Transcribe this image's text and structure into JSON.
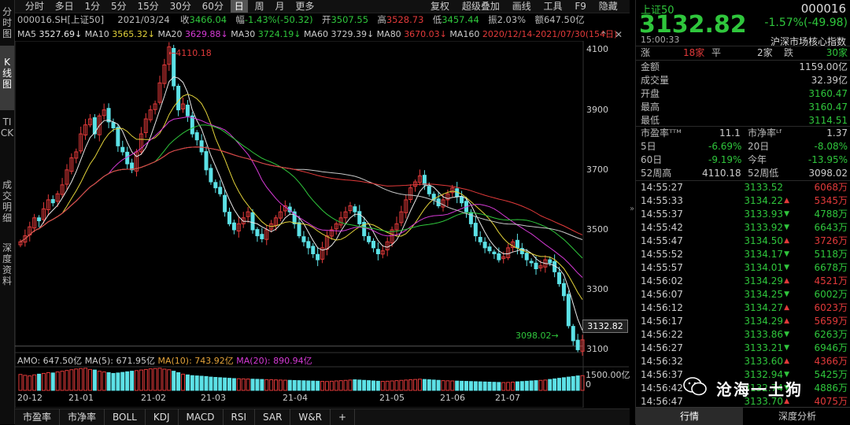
{
  "left_tabs": [
    "分时图",
    "K线图",
    "TICK",
    "成交明细",
    "深度资料"
  ],
  "toolbar": {
    "periods": [
      "分时",
      "多日",
      "1分",
      "5分",
      "15分",
      "30分",
      "60分",
      "日",
      "周",
      "月",
      "更多"
    ],
    "right_items": [
      "复权",
      "超级叠加",
      "画线",
      "工具",
      "F9",
      "隐藏"
    ]
  },
  "info": {
    "code": "000016.SH[上证50]",
    "date": "2021/03/24",
    "close_label": "收",
    "close": "3466.04",
    "change_label": "幅",
    "change": "-1.43%(-50.32)",
    "open_label": "开",
    "open": "3507.55",
    "high_label": "高",
    "high": "3528.73",
    "low_label": "低",
    "low": "3457.44",
    "amp_label": "振",
    "amp": "2.03%",
    "amount_label": "额",
    "amount": "647.50亿"
  },
  "ma": [
    {
      "label": "MA5",
      "value": "3527.69↓",
      "color": "#e8e8e8"
    },
    {
      "label": "MA10",
      "value": "3565.32↓",
      "color": "#e3d33a"
    },
    {
      "label": "MA20",
      "value": "3629.88↓",
      "color": "#d63ad6"
    },
    {
      "label": "MA30",
      "value": "3724.19↓",
      "color": "#2fc63c"
    },
    {
      "label": "MA60",
      "value": "3729.39↓",
      "color": "#c8c8c8"
    },
    {
      "label": "MA80",
      "value": "3670.03↓",
      "color": "#e23a3a"
    },
    {
      "label": "MA160",
      "value": "",
      "color": "#e3d33a"
    }
  ],
  "range_text": "2020/12/14-2021/07/30(154日)",
  "price_axis": [
    "4100",
    "3900",
    "3700",
    "3500",
    "3300",
    "3100"
  ],
  "last_price_tag": "3132.82",
  "high_mark": "4110.18",
  "low_mark": "3098.02",
  "amo": {
    "label": "AMO: 647.50亿",
    "ma5": "MA(5): 671.95亿",
    "ma10": "MA(10): 743.92亿",
    "ma20": "MA(20): 890.94亿",
    "axis_top": "1500.00亿",
    "axis_bottom": "0"
  },
  "date_axis": [
    "20-12",
    "21-01",
    "21-02",
    "21-03",
    "21-04",
    "21-05",
    "21-06",
    "21-07"
  ],
  "bottom_tabs": [
    "市盈率",
    "市净率",
    "BOLL",
    "KDJ",
    "MACD",
    "RSI",
    "SAR",
    "W&R"
  ],
  "bottom_plus": "+",
  "chart_data": {
    "type": "candlestick",
    "range": "2020/12/14-2021/07/30",
    "ylim": [
      3080,
      4130
    ],
    "series_note": "daily index candles, approximate",
    "closes": [
      3460,
      3480,
      3510,
      3540,
      3530,
      3570,
      3600,
      3590,
      3620,
      3650,
      3700,
      3740,
      3760,
      3820,
      3850,
      3870,
      3820,
      3880,
      3900,
      3860,
      3840,
      3780,
      3760,
      3720,
      3700,
      3760,
      3820,
      3870,
      3900,
      3920,
      3990,
      4050,
      4110,
      3980,
      3900,
      3920,
      3880,
      3820,
      3800,
      3760,
      3700,
      3660,
      3640,
      3620,
      3560,
      3520,
      3500,
      3520,
      3540,
      3560,
      3500,
      3480,
      3470,
      3500,
      3520,
      3540,
      3560,
      3580,
      3560,
      3520,
      3480,
      3460,
      3440,
      3420,
      3400,
      3440,
      3480,
      3500,
      3520,
      3540,
      3560,
      3580,
      3560,
      3520,
      3480,
      3460,
      3440,
      3420,
      3430,
      3460,
      3500,
      3520,
      3560,
      3600,
      3640,
      3660,
      3680,
      3650,
      3620,
      3600,
      3580,
      3600,
      3620,
      3640,
      3610,
      3590,
      3560,
      3520,
      3480,
      3460,
      3440,
      3430,
      3420,
      3400,
      3410,
      3440,
      3460,
      3440,
      3420,
      3400,
      3390,
      3370,
      3380,
      3400,
      3390,
      3360,
      3320,
      3280,
      3180,
      3130,
      3100,
      3133
    ],
    "amo_values": [
      1080,
      1020,
      980,
      1050,
      1100,
      1150,
      1200,
      1180,
      1250,
      1300,
      1350,
      1400,
      1450,
      1480,
      1500,
      1420,
      1380,
      1300,
      1250,
      1200,
      1150,
      1180,
      1220,
      1260,
      1300,
      1340,
      1380,
      1420,
      1460,
      1480,
      1500,
      1440,
      1400,
      1300,
      1200,
      1100,
      1050,
      1000,
      980,
      960,
      940,
      900,
      880,
      860,
      840,
      820,
      800,
      790,
      780,
      770,
      760,
      750,
      740,
      730,
      720,
      710,
      700,
      690,
      680,
      670,
      660,
      650,
      640,
      630,
      620,
      610,
      600,
      620,
      640,
      660,
      680,
      700,
      720,
      700,
      680,
      660,
      640,
      620,
      610,
      620,
      640,
      660,
      680,
      700,
      720,
      740,
      760,
      740,
      720,
      700,
      680,
      660,
      650,
      640,
      630,
      620,
      610,
      600,
      590,
      580,
      570,
      560,
      550,
      540,
      530,
      540,
      560,
      580,
      600,
      620,
      640,
      660,
      680,
      700,
      740,
      780,
      820,
      860,
      900,
      940,
      980,
      1000,
      647
    ]
  },
  "right_panel": {
    "name": "上证50",
    "code": "000016",
    "price": "3132.82",
    "pct": "-1.57%",
    "chg": "(-49.98)",
    "time": "15:00:33",
    "category": "沪深市场核心指数",
    "updown": {
      "zhang": "涨",
      "zhang_n": "18家",
      "ping": "平",
      "ping_n": "2家",
      "die": "跌",
      "die_n": "30家"
    },
    "stats": [
      {
        "label": "金额",
        "value": "1159.00亿",
        "color": "#cccccc"
      },
      {
        "label": "成交量",
        "value": "32.39亿",
        "color": "#cccccc"
      },
      {
        "label": "开盘",
        "value": "3160.47",
        "color": "#2fc63c"
      },
      {
        "label": "最高",
        "value": "3160.47",
        "color": "#2fc63c"
      },
      {
        "label": "最低",
        "value": "3114.51",
        "color": "#2fc63c"
      }
    ],
    "valuation": {
      "pe_label": "市盈率ᵀᵀᴹ",
      "pe": "11.1",
      "pb_label": "市净率ᴸᶠ",
      "pb": "1.37",
      "d5_label": "5日",
      "d5": "-6.69%",
      "d20_label": "20日",
      "d20": "-8.08%",
      "d60_label": "60日",
      "d60": "-9.19%",
      "ytd_label": "今年",
      "ytd": "-13.95%",
      "wh_label": "52周高",
      "wh": "4110.18",
      "wl_label": "52周低",
      "wl": "3098.02"
    },
    "ticks": [
      {
        "t": "14:55:27",
        "p": "3133.52",
        "dir": "",
        "v": "6068万"
      },
      {
        "t": "14:55:33",
        "p": "3134.22",
        "dir": "up",
        "v": "5345万"
      },
      {
        "t": "14:55:37",
        "p": "3133.93",
        "dir": "dn",
        "v": "4788万"
      },
      {
        "t": "14:55:42",
        "p": "3133.92",
        "dir": "dn",
        "v": "6643万"
      },
      {
        "t": "14:55:47",
        "p": "3134.50",
        "dir": "up",
        "v": "3726万"
      },
      {
        "t": "14:55:52",
        "p": "3134.17",
        "dir": "dn",
        "v": "5118万"
      },
      {
        "t": "14:55:57",
        "p": "3134.01",
        "dir": "dn",
        "v": "6678万"
      },
      {
        "t": "14:56:02",
        "p": "3134.29",
        "dir": "up",
        "v": "4521万"
      },
      {
        "t": "14:56:07",
        "p": "3134.25",
        "dir": "dn",
        "v": "6002万"
      },
      {
        "t": "14:56:12",
        "p": "3134.27",
        "dir": "up",
        "v": "6023万"
      },
      {
        "t": "14:56:17",
        "p": "3134.29",
        "dir": "up",
        "v": "5659万"
      },
      {
        "t": "14:56:22",
        "p": "3133.86",
        "dir": "dn",
        "v": "6263万"
      },
      {
        "t": "14:56:27",
        "p": "3133.21",
        "dir": "dn",
        "v": "6946万"
      },
      {
        "t": "14:56:32",
        "p": "3133.60",
        "dir": "up",
        "v": "4366万"
      },
      {
        "t": "14:56:37",
        "p": "3132.94",
        "dir": "dn",
        "v": "5425万"
      },
      {
        "t": "14:56:42",
        "p": "3132.74",
        "dir": "dn",
        "v": "4886万"
      },
      {
        "t": "14:56:47",
        "p": "3133.70",
        "dir": "up",
        "v": "4075万"
      }
    ],
    "tabs": [
      "行情",
      "深度分析"
    ],
    "watermark": "沧海一土狗"
  }
}
